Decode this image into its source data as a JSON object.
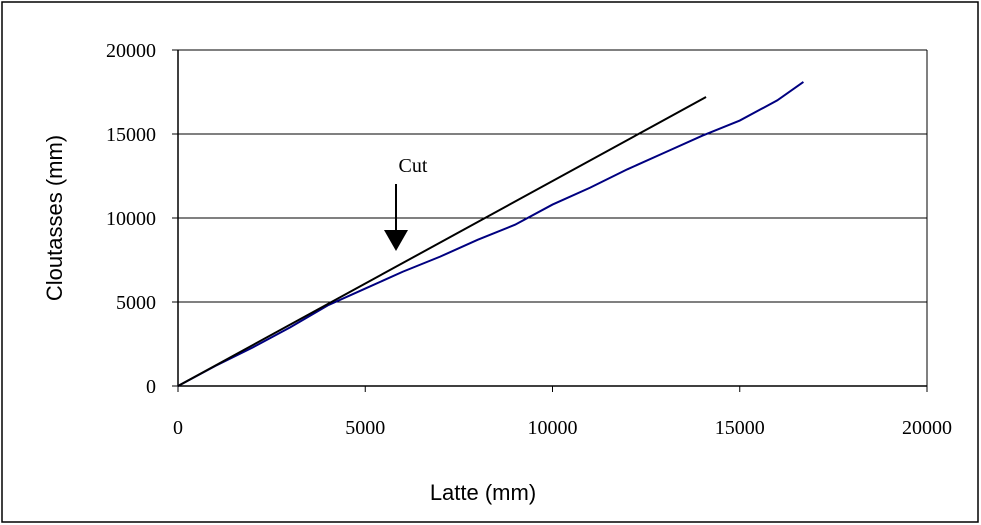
{
  "chart_data": {
    "type": "line",
    "xlabel": "Latte (mm)",
    "ylabel": "Cloutasses (mm)",
    "annotation": "Cut",
    "xlim": [
      0,
      20000
    ],
    "xticks": [
      0,
      5000,
      10000,
      15000,
      20000
    ],
    "ylim": [
      0,
      20000
    ],
    "yticks": [
      0,
      5000,
      10000,
      15000,
      20000
    ],
    "grid": true,
    "series": [
      {
        "color": "#000080",
        "x": [
          0,
          1000,
          2000,
          3000,
          4000,
          5000,
          6000,
          7000,
          8000,
          9000,
          10000,
          11000,
          12000,
          13000,
          14000,
          15000,
          16000,
          16700
        ],
        "values": [
          0,
          1200,
          2300,
          3500,
          4800,
          5800,
          6800,
          7700,
          8700,
          9600,
          10800,
          11800,
          12900,
          13900,
          14900,
          15800,
          17000,
          18100
        ]
      },
      {
        "color": "#000000",
        "x": [
          0,
          14100
        ],
        "values": [
          0,
          17200
        ]
      }
    ]
  }
}
